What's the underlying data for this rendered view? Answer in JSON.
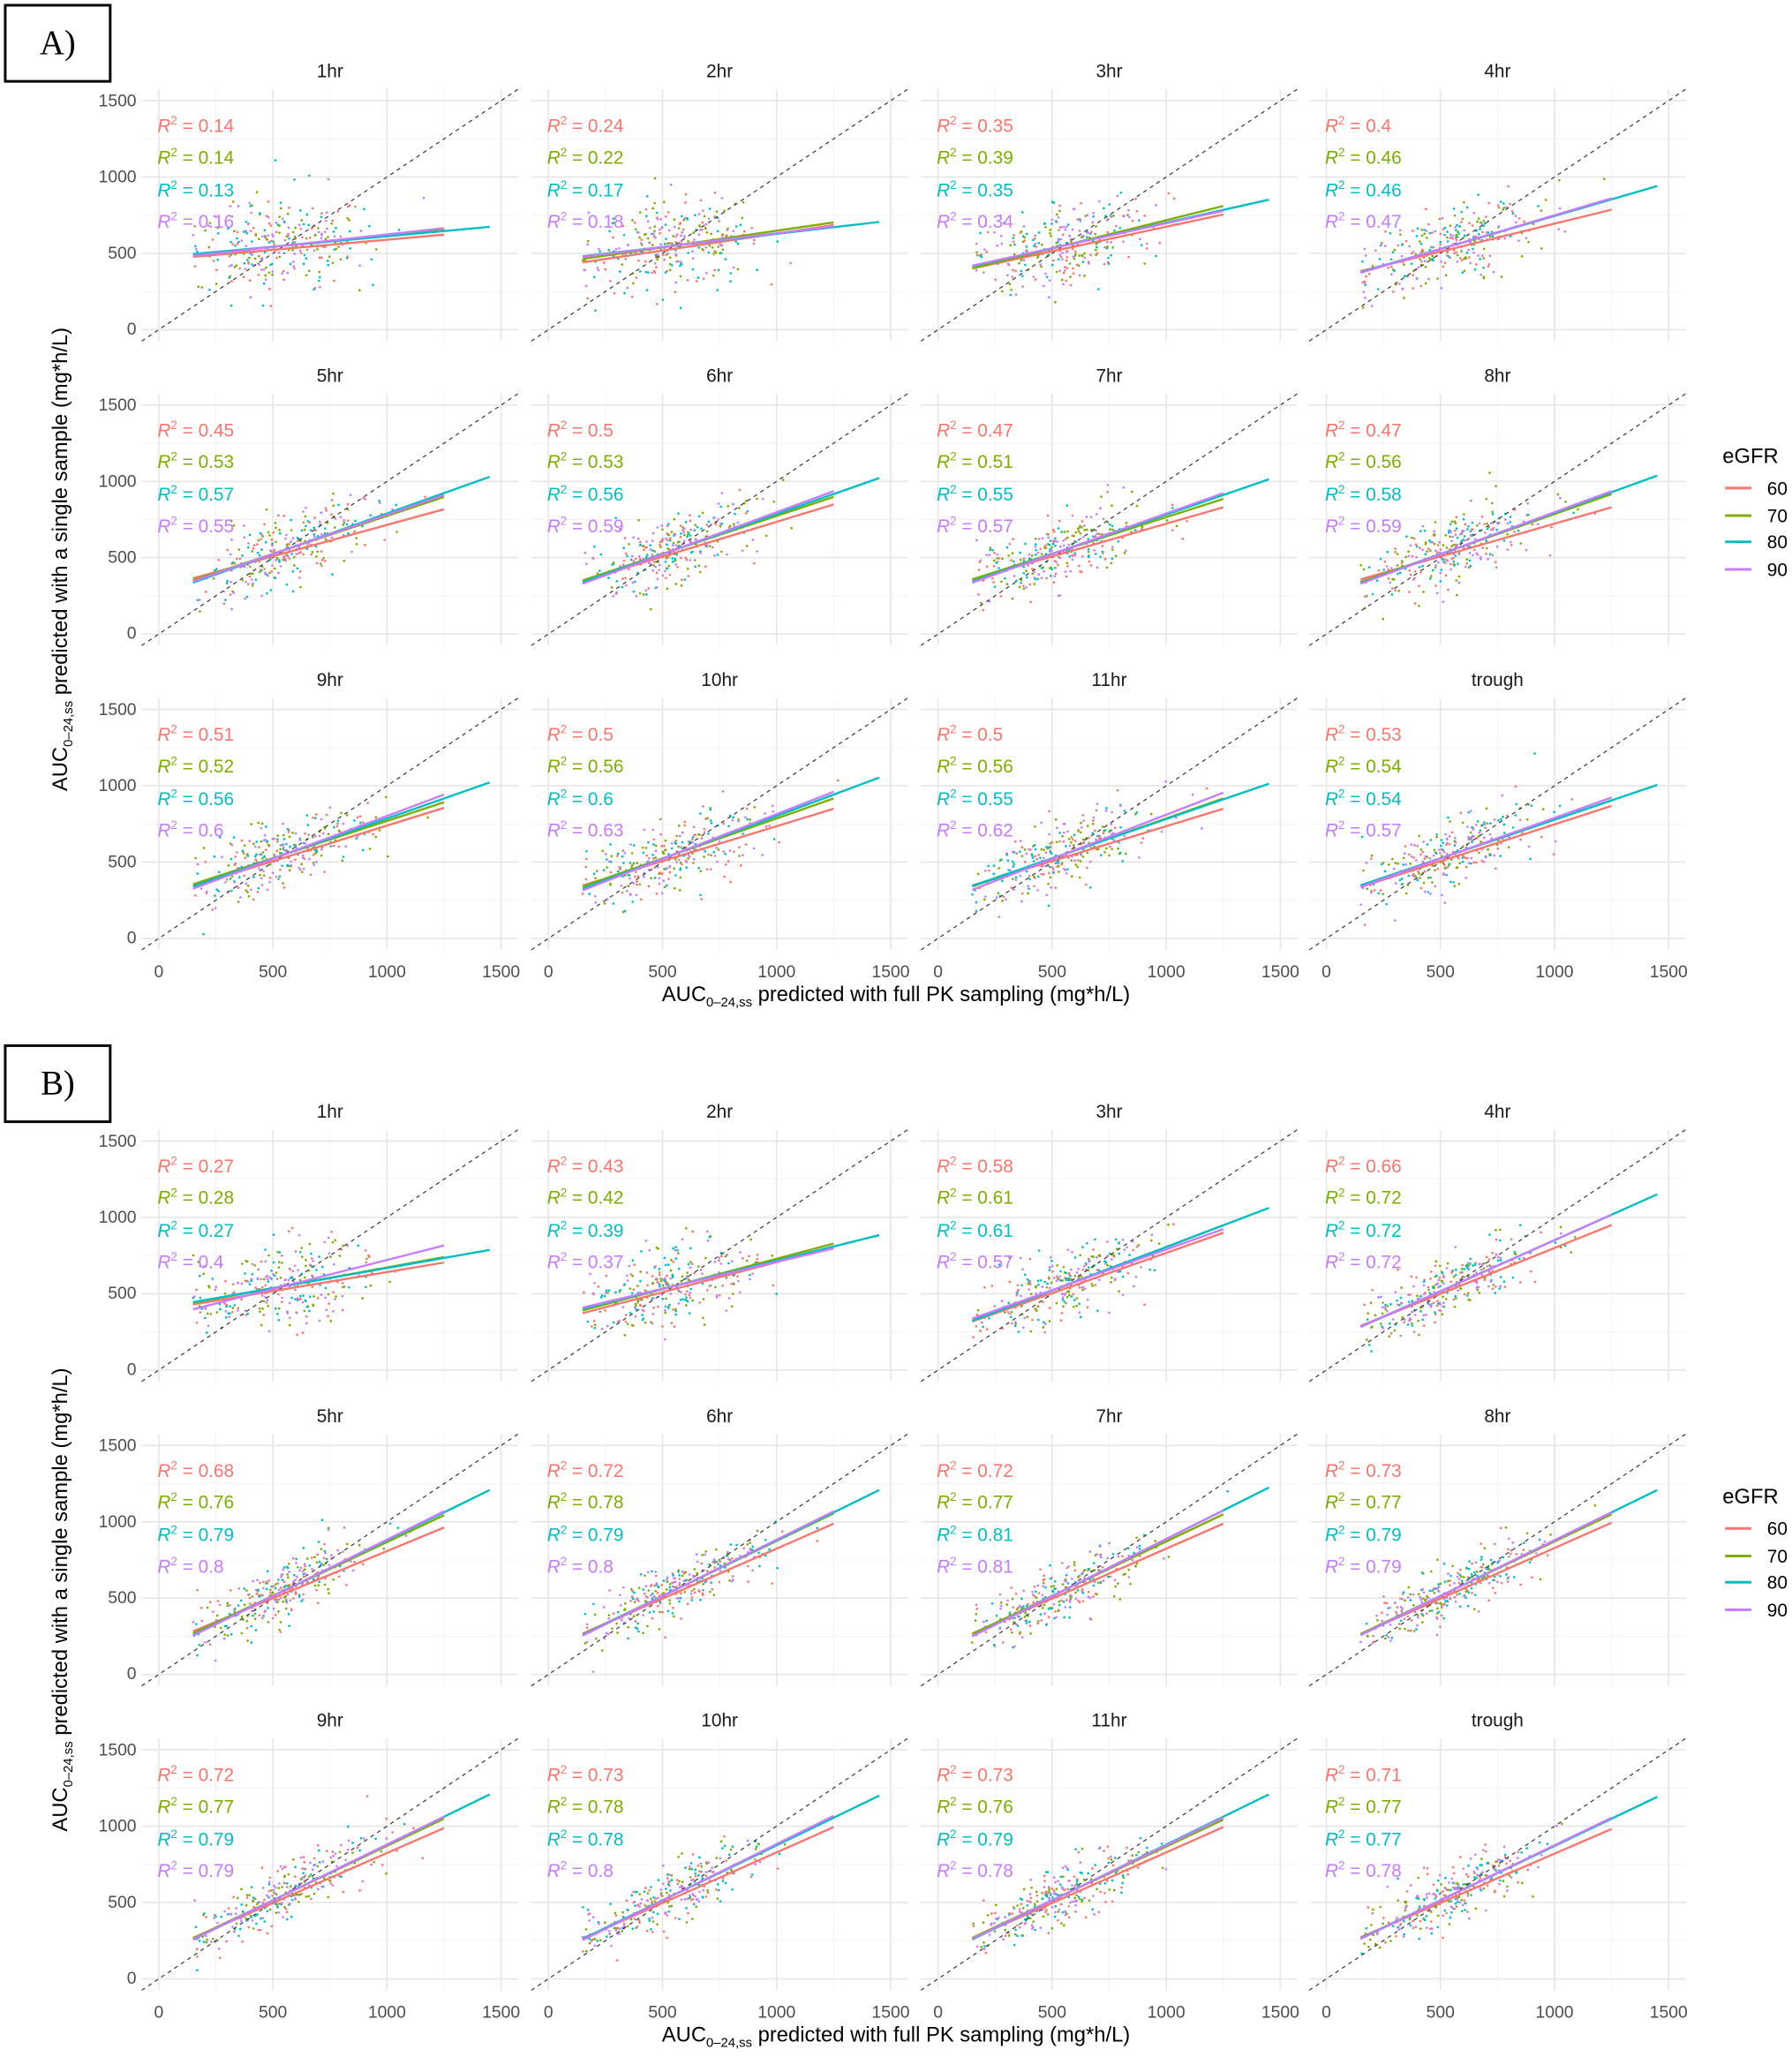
{
  "chart_data": [
    {
      "type": "scatter",
      "panel_label": "A)",
      "xlabel": {
        "main": "AUC",
        "sub": "0–24,ss",
        "rest": " predicted with full PK sampling (mg*h/L)"
      },
      "ylabel": {
        "main": "AUC",
        "sub": "0–24,ss",
        "rest": " predicted with a single sample (mg*h/L)"
      },
      "xlim": [
        -75,
        1575
      ],
      "ylim": [
        -75,
        1575
      ],
      "x_ticks": [
        "0",
        "500",
        "1000",
        "1500"
      ],
      "y_ticks": [
        "0",
        "500",
        "1000",
        "1500"
      ],
      "reference_line": "identity (dashed)",
      "legend": {
        "title": "eGFR",
        "placement": "right",
        "entries": [
          "60",
          "70",
          "80",
          "90"
        ]
      },
      "facets": [
        {
          "title": "1hr",
          "r2": [
            0.14,
            0.14,
            0.13,
            0.16
          ]
        },
        {
          "title": "2hr",
          "r2": [
            0.24,
            0.22,
            0.17,
            0.18
          ]
        },
        {
          "title": "3hr",
          "r2": [
            0.35,
            0.39,
            0.35,
            0.34
          ]
        },
        {
          "title": "4hr",
          "r2": [
            0.4,
            0.46,
            0.46,
            0.47
          ]
        },
        {
          "title": "5hr",
          "r2": [
            0.45,
            0.53,
            0.57,
            0.55
          ]
        },
        {
          "title": "6hr",
          "r2": [
            0.5,
            0.53,
            0.56,
            0.59
          ]
        },
        {
          "title": "7hr",
          "r2": [
            0.47,
            0.51,
            0.55,
            0.57
          ]
        },
        {
          "title": "8hr",
          "r2": [
            0.47,
            0.56,
            0.58,
            0.59
          ]
        },
        {
          "title": "9hr",
          "r2": [
            0.51,
            0.52,
            0.56,
            0.6
          ]
        },
        {
          "title": "10hr",
          "r2": [
            0.5,
            0.56,
            0.6,
            0.63
          ]
        },
        {
          "title": "11hr",
          "r2": [
            0.5,
            0.56,
            0.55,
            0.62
          ]
        },
        {
          "title": "trough",
          "r2": [
            0.53,
            0.54,
            0.54,
            0.57
          ]
        }
      ]
    },
    {
      "type": "scatter",
      "panel_label": "B)",
      "xlabel": {
        "main": "AUC",
        "sub": "0–24,ss",
        "rest": " predicted with full PK sampling (mg*h/L)"
      },
      "ylabel": {
        "main": "AUC",
        "sub": "0–24,ss",
        "rest": " predicted with a single sample (mg*h/L)"
      },
      "xlim": [
        -75,
        1575
      ],
      "ylim": [
        -75,
        1575
      ],
      "x_ticks": [
        "0",
        "500",
        "1000",
        "1500"
      ],
      "y_ticks": [
        "0",
        "500",
        "1000",
        "1500"
      ],
      "reference_line": "identity (dashed)",
      "legend": {
        "title": "eGFR",
        "placement": "right",
        "entries": [
          "60",
          "70",
          "80",
          "90"
        ]
      },
      "facets": [
        {
          "title": "1hr",
          "r2": [
            0.27,
            0.28,
            0.27,
            0.4
          ]
        },
        {
          "title": "2hr",
          "r2": [
            0.43,
            0.42,
            0.39,
            0.37
          ]
        },
        {
          "title": "3hr",
          "r2": [
            0.58,
            0.61,
            0.61,
            0.57
          ]
        },
        {
          "title": "4hr",
          "r2": [
            0.66,
            0.72,
            0.72,
            0.72
          ]
        },
        {
          "title": "5hr",
          "r2": [
            0.68,
            0.76,
            0.79,
            0.8
          ]
        },
        {
          "title": "6hr",
          "r2": [
            0.72,
            0.78,
            0.79,
            0.8
          ]
        },
        {
          "title": "7hr",
          "r2": [
            0.72,
            0.77,
            0.81,
            0.81
          ]
        },
        {
          "title": "8hr",
          "r2": [
            0.73,
            0.77,
            0.79,
            0.79
          ]
        },
        {
          "title": "9hr",
          "r2": [
            0.72,
            0.77,
            0.79,
            0.79
          ]
        },
        {
          "title": "10hr",
          "r2": [
            0.73,
            0.78,
            0.78,
            0.8
          ]
        },
        {
          "title": "11hr",
          "r2": [
            0.73,
            0.76,
            0.79,
            0.78
          ]
        },
        {
          "title": "trough",
          "r2": [
            0.71,
            0.77,
            0.77,
            0.78
          ]
        }
      ]
    }
  ],
  "colors": {
    "60": "#F8766D",
    "70": "#7CAE00",
    "80": "#00BFC4",
    "90": "#C77CFF"
  },
  "r2_prefix": "R",
  "r2_sup": "2",
  "r2_eq": " = "
}
